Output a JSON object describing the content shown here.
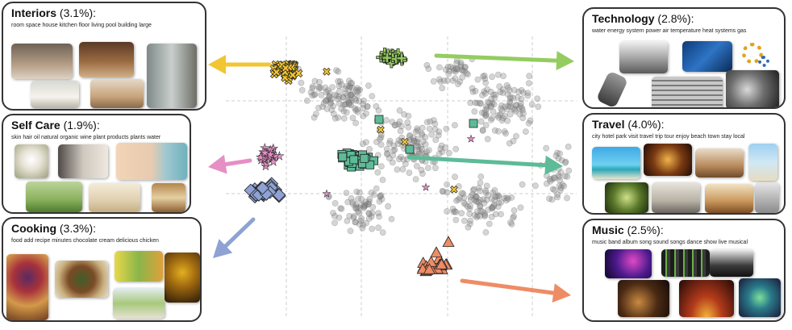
{
  "panels": [
    {
      "key": "interiors",
      "name": "Interiors",
      "pct": "(3.1%):",
      "words": "room space house kitchen floor living pool building large",
      "bg": "#fdf1b4",
      "side": "left"
    },
    {
      "key": "selfcare",
      "name": "Self Care",
      "pct": "(1.9%):",
      "words": "skin hair oil natural organic wine plant products plants water",
      "bg": "#f1c8e2",
      "side": "left"
    },
    {
      "key": "cooking",
      "name": "Cooking",
      "pct": "(3.3%):",
      "words": "food add recipe minutes chocolate cream delicious chicken",
      "bg": "#cfdcf5",
      "side": "left"
    },
    {
      "key": "technology",
      "name": "Technology",
      "pct": "(2.8%):",
      "words": "water energy system power air temperature heat systems gas",
      "bg": "#cfe5b0",
      "side": "right"
    },
    {
      "key": "travel",
      "name": "Travel",
      "pct": "(4.0%):",
      "words": "city hotel park visit travel trip tour enjoy beach town stay local",
      "bg": "#cdebe0",
      "side": "right"
    },
    {
      "key": "music",
      "name": "Music",
      "pct": "(2.5%):",
      "words": "music band album song sound songs dance show live musical",
      "bg": "#fbd3c3",
      "side": "right"
    }
  ],
  "colors": {
    "interiors": "#f2c533",
    "selfcare": "#e58fc5",
    "cooking": "#8ea2d3",
    "technology": "#94cc60",
    "travel": "#5dbb98",
    "music": "#ee8c66",
    "background_points": "#888888"
  }
}
